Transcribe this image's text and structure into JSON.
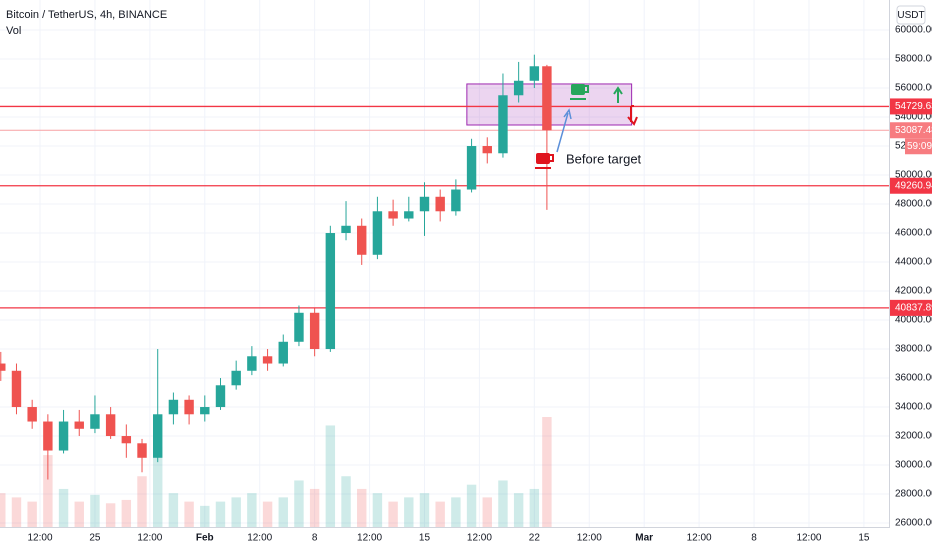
{
  "chart_data": {
    "type": "candlestick",
    "title": "Bitcoin / TetherUS, 4h, BINANCE",
    "subtitle": "Vol",
    "currency_button": "USDT",
    "countdown": "59:09",
    "annotation": "Before target",
    "up_color": "#26a69a",
    "down_color": "#ef5350",
    "x": [
      19,
      20,
      21,
      22,
      23,
      24,
      25,
      26,
      27,
      28,
      29,
      30,
      31,
      32,
      33,
      34,
      35,
      36,
      37,
      38,
      39,
      40,
      41,
      42,
      43,
      44,
      45,
      46,
      47,
      48,
      49,
      50,
      51,
      52,
      53,
      53.8
    ],
    "open": [
      37000,
      36500,
      34000,
      33000,
      31000,
      33000,
      32500,
      33500,
      32000,
      31500,
      30500,
      33500,
      34500,
      33500,
      34000,
      35500,
      36500,
      37500,
      37000,
      38500,
      40500,
      38000,
      46000,
      46500,
      44500,
      47500,
      47000,
      47500,
      48500,
      47500,
      49000,
      52000,
      51500,
      55500,
      56500,
      57500
    ],
    "high": [
      37800,
      37000,
      34500,
      33500,
      33800,
      33800,
      34800,
      34000,
      32800,
      31800,
      38000,
      35000,
      34800,
      34800,
      36000,
      37200,
      38200,
      38000,
      39000,
      41000,
      40800,
      46500,
      48200,
      47000,
      48500,
      48300,
      48500,
      49500,
      49000,
      49700,
      52500,
      52600,
      57000,
      57800,
      58300,
      57600
    ],
    "low": [
      35800,
      33500,
      32500,
      29000,
      30800,
      32000,
      32200,
      31800,
      30500,
      29500,
      30200,
      32800,
      32800,
      33000,
      33800,
      35200,
      36200,
      36500,
      36800,
      38200,
      37500,
      37800,
      45500,
      43800,
      44200,
      46500,
      46800,
      45800,
      46800,
      47200,
      48800,
      50800,
      51200,
      55000,
      56000,
      47600
    ],
    "close": [
      36500,
      34000,
      33000,
      31000,
      33000,
      32500,
      33500,
      32000,
      31500,
      30500,
      33500,
      34500,
      33500,
      34000,
      35500,
      36500,
      37500,
      37000,
      38500,
      40500,
      38000,
      46000,
      46500,
      44500,
      47500,
      47000,
      47500,
      48500,
      47500,
      49000,
      52000,
      51500,
      55500,
      56500,
      57500,
      53087.48
    ],
    "volume": [
      40,
      35,
      30,
      85,
      45,
      30,
      38,
      28,
      32,
      60,
      95,
      40,
      30,
      25,
      30,
      35,
      40,
      30,
      35,
      55,
      45,
      120,
      60,
      45,
      40,
      30,
      35,
      40,
      30,
      35,
      50,
      35,
      55,
      40,
      45,
      130
    ],
    "levels": [
      54729.63,
      53087.48,
      49260.94,
      40837.89
    ],
    "zone": {
      "x": [
        48.7,
        59.2
      ],
      "y": [
        53450,
        56280
      ]
    },
    "xlim": [
      18.95,
      75.6
    ],
    "ylim": [
      24830,
      62070
    ],
    "xticks": [
      {
        "value": 21.5,
        "label": "12:00"
      },
      {
        "value": 25,
        "label": "25"
      },
      {
        "value": 28.5,
        "label": "12:00"
      },
      {
        "value": 32,
        "label": "Feb"
      },
      {
        "value": 35.5,
        "label": "12:00"
      },
      {
        "value": 39,
        "label": "8"
      },
      {
        "value": 42.5,
        "label": "12:00"
      },
      {
        "value": 46,
        "label": "15"
      },
      {
        "value": 49.5,
        "label": "12:00"
      },
      {
        "value": 53,
        "label": "22"
      },
      {
        "value": 56.5,
        "label": "12:00"
      },
      {
        "value": 60,
        "label": "Mar"
      },
      {
        "value": 63.5,
        "label": "12:00"
      },
      {
        "value": 67,
        "label": "8"
      },
      {
        "value": 70.5,
        "label": "12:00"
      },
      {
        "value": 74,
        "label": "15"
      }
    ],
    "yticks": [
      {
        "value": 26000,
        "label": "26000.00"
      },
      {
        "value": 28000,
        "label": "28000.00"
      },
      {
        "value": 30000,
        "label": "30000.00"
      },
      {
        "value": 32000,
        "label": "32000.00"
      },
      {
        "value": 34000,
        "label": "34000.00"
      },
      {
        "value": 36000,
        "label": "36000.00"
      },
      {
        "value": 38000,
        "label": "38000.00"
      },
      {
        "value": 40000,
        "label": "40000.00"
      },
      {
        "value": 42000,
        "label": "42000.00"
      },
      {
        "value": 44000,
        "label": "44000.00"
      },
      {
        "value": 46000,
        "label": "46000.00"
      },
      {
        "value": 48000,
        "label": "48000.00"
      },
      {
        "value": 50000,
        "label": "50000.00"
      },
      {
        "value": 52000,
        "label": "52000.00"
      },
      {
        "value": 54000,
        "label": "54000.00"
      },
      {
        "value": 56000,
        "label": "56000.00"
      },
      {
        "value": 58000,
        "label": "58000.00"
      },
      {
        "value": 60000,
        "label": "60000.00"
      }
    ]
  }
}
